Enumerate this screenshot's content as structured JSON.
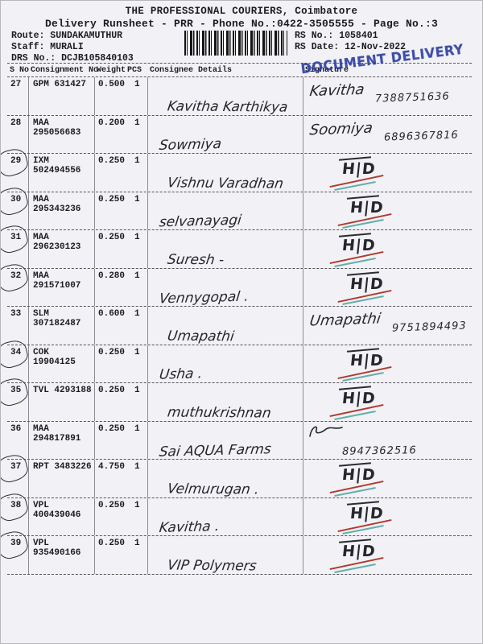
{
  "header": {
    "title": "THE PROFESSIONAL COURIERS, Coimbatore",
    "subtitle": "Delivery Runsheet - PRR - Phone No.:0422-3505555 - Page No.:3",
    "route": "Route: SUNDAKAMUTHUR",
    "staff": "Staff: MURALI",
    "drs_no": "DRS No.: DCJB105840103",
    "rs_no": "RS No.: 1058401",
    "rs_date": "RS Date: 12-Nov-2022"
  },
  "stamp": {
    "text": "DOCUMENT DELIVERY"
  },
  "colors": {
    "stamp_blue": "#2b3e9e",
    "pen_red": "#b03a2e",
    "pen_teal": "#3f9e98",
    "paper": "#f2f1f5",
    "ink": "#1c1c22"
  },
  "table": {
    "headers": [
      "S No",
      "Consignment No",
      "Weight",
      "PCS",
      "Consignee Details",
      "Signature"
    ],
    "hd_label": "H|D",
    "rows": [
      {
        "sno": "27",
        "consignment": "GPM 631427",
        "weight": "0.500",
        "pcs": "1",
        "consignee": "Kavitha Karthikya",
        "circled": false,
        "signature": {
          "type": "name-phone",
          "name": "Kavitha",
          "phone": "7388751636"
        }
      },
      {
        "sno": "28",
        "consignment": "MAA 295056683",
        "weight": "0.200",
        "pcs": "1",
        "consignee": "Sowmiya",
        "circled": false,
        "signature": {
          "type": "name-phone",
          "name": "Soomiya",
          "phone": "6896367816"
        }
      },
      {
        "sno": "29",
        "consignment": "IXM 502494556",
        "weight": "0.250",
        "pcs": "1",
        "consignee": "Vishnu Varadhan",
        "circled": true,
        "signature": {
          "type": "hd"
        }
      },
      {
        "sno": "30",
        "consignment": "MAA 295343236",
        "weight": "0.250",
        "pcs": "1",
        "consignee": "selvanayagi",
        "circled": true,
        "signature": {
          "type": "hd"
        }
      },
      {
        "sno": "31",
        "consignment": "MAA 296230123",
        "weight": "0.250",
        "pcs": "1",
        "consignee": "Suresh -",
        "circled": true,
        "signature": {
          "type": "hd"
        }
      },
      {
        "sno": "32",
        "consignment": "MAA 291571007",
        "weight": "0.280",
        "pcs": "1",
        "consignee": "Vennygopal .",
        "circled": true,
        "signature": {
          "type": "hd"
        }
      },
      {
        "sno": "33",
        "consignment": "SLM 307182487",
        "weight": "0.600",
        "pcs": "1",
        "consignee": "Umapathi",
        "circled": false,
        "signature": {
          "type": "name-phone",
          "name": "Umapathi",
          "phone": "9751894493"
        }
      },
      {
        "sno": "34",
        "consignment": "COK 19904125",
        "weight": "0.250",
        "pcs": "1",
        "consignee": "Usha .",
        "circled": true,
        "signature": {
          "type": "hd"
        }
      },
      {
        "sno": "35",
        "consignment": "TVL 4293188",
        "weight": "0.250",
        "pcs": "1",
        "consignee": "muthukrishnan",
        "circled": true,
        "signature": {
          "type": "hd"
        }
      },
      {
        "sno": "36",
        "consignment": "MAA 294817891",
        "weight": "0.250",
        "pcs": "1",
        "consignee": "Sai AQUA Farms",
        "circled": false,
        "signature": {
          "type": "scribble-phone",
          "phone": "8947362516"
        }
      },
      {
        "sno": "37",
        "consignment": "RPT 3483226",
        "weight": "4.750",
        "pcs": "1",
        "consignee": "Velmurugan .",
        "circled": true,
        "signature": {
          "type": "hd"
        }
      },
      {
        "sno": "38",
        "consignment": "VPL 400439046",
        "weight": "0.250",
        "pcs": "1",
        "consignee": "Kavitha .",
        "circled": true,
        "signature": {
          "type": "hd"
        }
      },
      {
        "sno": "39",
        "consignment": "VPL 935490166",
        "weight": "0.250",
        "pcs": "1",
        "consignee": "VIP Polymers",
        "circled": true,
        "signature": {
          "type": "hd"
        }
      }
    ]
  }
}
